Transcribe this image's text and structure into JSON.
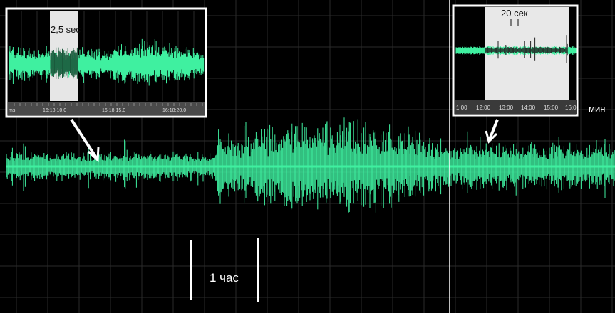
{
  "colors": {
    "background": "#000000",
    "grid": "#2a2a2a",
    "signal": "#3ff0a0",
    "signal_dark": "#1a5a3c",
    "inset_border": "#ffffff",
    "highlight": "#e8e8e8",
    "axis_bar": "#555555",
    "label": "#ffffff"
  },
  "chart_data": [
    {
      "type": "line",
      "description_kind": "main-trace",
      "scale_bar_label": "1 час",
      "vertical_marker": true
    },
    {
      "type": "line",
      "description_kind": "left-inset",
      "highlight_label": "2,5 sec",
      "axis_unit": "ms",
      "tick_labels": [
        "16:18:10.0",
        "16:18:15.0",
        "16:18:20.0"
      ]
    },
    {
      "type": "line",
      "description_kind": "right-inset",
      "highlight_label": "20 сек",
      "tick_labels": [
        "1:00",
        "12:00",
        "13:00",
        "14:00",
        "15:00",
        "16:0"
      ],
      "axis_unit": "мин"
    }
  ]
}
